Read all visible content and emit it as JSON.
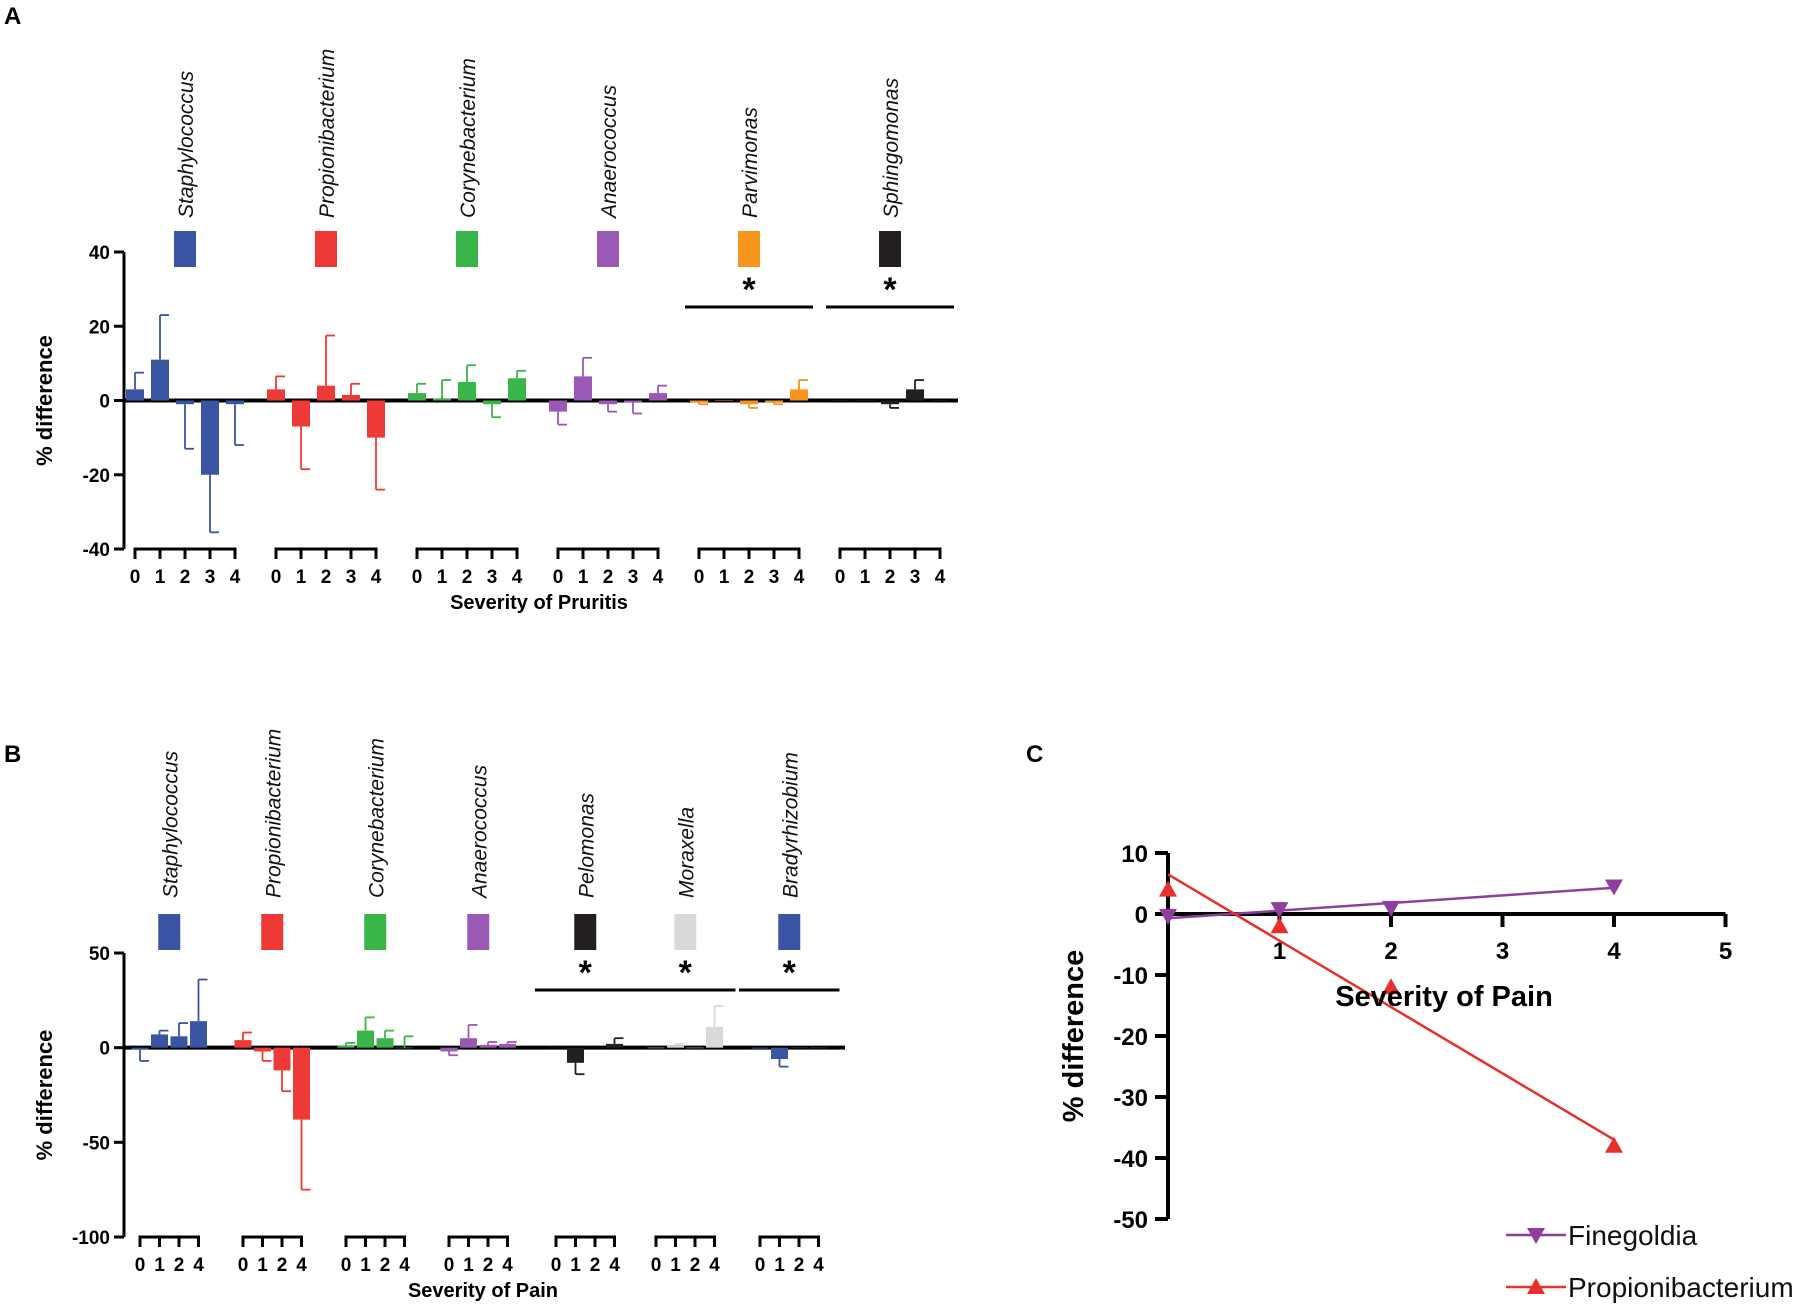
{
  "panels": {
    "a": "A",
    "b": "B",
    "c": "C"
  },
  "chart_data": [
    {
      "id": "A",
      "type": "bar",
      "ylabel": "% difference",
      "xlabel": "Severity of Pruritis",
      "ylim": [
        -40,
        40
      ],
      "yticks": [
        40,
        20,
        0,
        -20,
        -40
      ],
      "categories": [
        "0",
        "1",
        "2",
        "3",
        "4"
      ],
      "groups": [
        {
          "name": "Staphylococcus",
          "color": "#3a54a4",
          "values": [
            3,
            11,
            -1,
            -20,
            -1
          ],
          "errors": [
            4.5,
            12,
            12,
            15.5,
            11
          ],
          "significant": false
        },
        {
          "name": "Propionibacterium",
          "color": "#ee3a36",
          "values": [
            3,
            -7,
            4,
            1.5,
            -10
          ],
          "errors": [
            3.5,
            11.5,
            13.5,
            3,
            14
          ],
          "significant": false
        },
        {
          "name": "Corynebacterium",
          "color": "#3ab54a",
          "values": [
            2,
            0.5,
            5,
            -1,
            6
          ],
          "errors": [
            2.5,
            5,
            4.5,
            3.5,
            2
          ],
          "significant": false
        },
        {
          "name": "Anaerococcus",
          "color": "#9b59b6",
          "values": [
            -3,
            6.5,
            -1,
            -0.5,
            2
          ],
          "errors": [
            3.5,
            5,
            2,
            3,
            2
          ],
          "significant": false
        },
        {
          "name": "Parvimonas",
          "color": "#f7941d",
          "values": [
            -0.5,
            0,
            -1,
            -0.5,
            3
          ],
          "errors": [
            0.5,
            0,
            1,
            0.5,
            2.5
          ],
          "significant": true
        },
        {
          "name": "Sphingomonas",
          "color": "#231f20",
          "values": [
            0,
            0,
            -1,
            3,
            0
          ],
          "errors": [
            0,
            0,
            1,
            2.5,
            0
          ],
          "significant": true
        }
      ],
      "significance_marker": "*"
    },
    {
      "id": "B",
      "type": "bar",
      "ylabel": "% difference",
      "xlabel": "Severity of Pain",
      "ylim": [
        -100,
        50
      ],
      "yticks": [
        50,
        0,
        -50,
        -100
      ],
      "categories": [
        "0",
        "1",
        "2",
        "4"
      ],
      "groups": [
        {
          "name": "Staphylococcus",
          "color": "#3a54a4",
          "values": [
            -1,
            7,
            6,
            14
          ],
          "errors": [
            6,
            2,
            7,
            22
          ],
          "significant": false
        },
        {
          "name": "Propionibacterium",
          "color": "#ee3a36",
          "values": [
            4,
            -2,
            -12,
            -38
          ],
          "errors": [
            4,
            5,
            11,
            37
          ],
          "significant": false
        },
        {
          "name": "Corynebacterium",
          "color": "#3ab54a",
          "values": [
            1,
            9,
            5,
            0
          ],
          "errors": [
            1.5,
            7,
            4,
            6
          ],
          "significant": false
        },
        {
          "name": "Anaerococcus",
          "color": "#9b59b6",
          "values": [
            -2,
            5,
            1.5,
            2
          ],
          "errors": [
            2,
            7,
            1.5,
            1
          ],
          "significant": false
        },
        {
          "name": "Pelomonas",
          "color": "#231f20",
          "values": [
            0,
            -8,
            0,
            2
          ],
          "errors": [
            0,
            6,
            0,
            3
          ],
          "significant": true
        },
        {
          "name": "Moraxella",
          "color": "#d9d9d9",
          "values": [
            0,
            1,
            0,
            11
          ],
          "errors": [
            0,
            1,
            0,
            11
          ],
          "significant": true
        },
        {
          "name": "Bradyrhizobium",
          "color": "#3a54a4",
          "values": [
            -0.5,
            -6,
            0,
            0
          ],
          "errors": [
            0,
            4,
            0,
            0
          ],
          "significant": true
        }
      ],
      "significance_marker": "*"
    },
    {
      "id": "C",
      "type": "scatter",
      "xlabel": "Severity of Pain",
      "ylabel": "% difference",
      "xlim": [
        0,
        5
      ],
      "ylim": [
        -50,
        10
      ],
      "xticks": [
        1,
        2,
        3,
        4,
        5
      ],
      "yticks": [
        10,
        0,
        -10,
        -20,
        -30,
        -40,
        -50
      ],
      "series": [
        {
          "name": "Finegoldia",
          "color": "#8e3f9e",
          "marker": "triangle-down",
          "x": [
            0,
            1,
            2,
            4
          ],
          "y": [
            -0.3,
            0.8,
            1,
            4.5
          ],
          "fit": {
            "x": [
              0,
              4
            ],
            "y": [
              -0.7,
              4.3
            ]
          }
        },
        {
          "name": "Propionibacterium",
          "color": "#e8302b",
          "marker": "triangle-up",
          "x": [
            0,
            1,
            2,
            4
          ],
          "y": [
            4,
            -2,
            -12,
            -38
          ],
          "fit": {
            "x": [
              0,
              4
            ],
            "y": [
              6.5,
              -37
            ]
          }
        }
      ]
    }
  ]
}
